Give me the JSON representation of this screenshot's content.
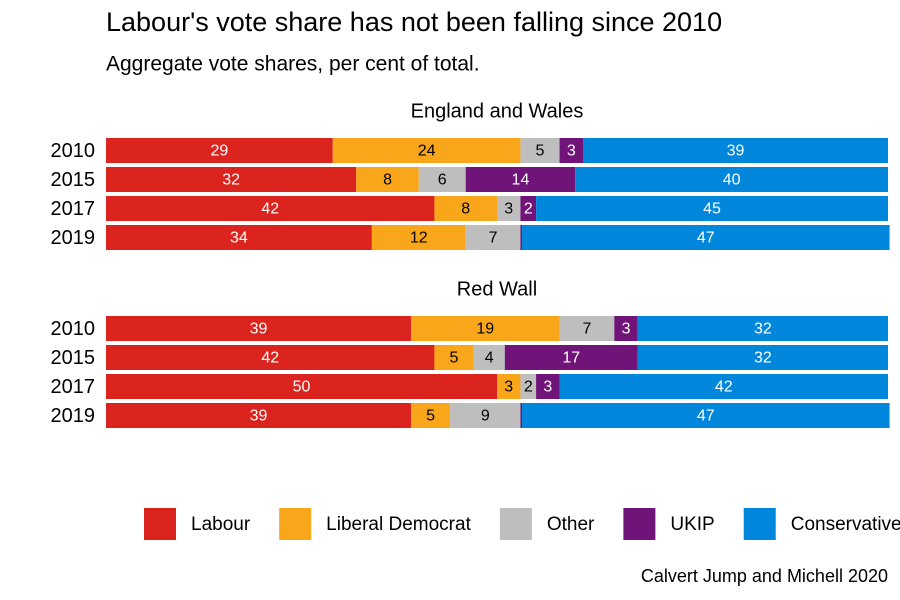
{
  "title": "Labour's vote share has not been falling since 2010",
  "subtitle": "Aggregate vote shares, per cent of total.",
  "source": "Calvert Jump and Michell 2020",
  "legend": "bottom",
  "chart_data": [
    {
      "type": "bar",
      "orientation": "horizontal",
      "stacked": true,
      "title": "England and Wales",
      "categories": [
        "2010",
        "2015",
        "2017",
        "2019"
      ],
      "xlim": [
        0,
        100
      ],
      "series": [
        {
          "name": "Labour",
          "color": "#dc241f",
          "label_color": "#ffffff",
          "values": [
            29,
            32,
            42,
            34
          ]
        },
        {
          "name": "Liberal Democrat",
          "color": "#faa61a",
          "label_color": "#000000",
          "values": [
            24,
            8,
            8,
            12
          ]
        },
        {
          "name": "Other",
          "color": "#bebebe",
          "label_color": "#000000",
          "values": [
            5,
            6,
            3,
            7
          ]
        },
        {
          "name": "UKIP",
          "color": "#70147a",
          "label_color": "#ffffff",
          "values": [
            3,
            14,
            2,
            0.2
          ],
          "value_labels": [
            "3",
            "14",
            "2",
            null
          ]
        },
        {
          "name": "Conservative",
          "color": "#0087dc",
          "label_color": "#ffffff",
          "values": [
            39,
            40,
            45,
            47
          ]
        }
      ]
    },
    {
      "type": "bar",
      "orientation": "horizontal",
      "stacked": true,
      "title": "Red Wall",
      "categories": [
        "2010",
        "2015",
        "2017",
        "2019"
      ],
      "xlim": [
        0,
        100
      ],
      "series": [
        {
          "name": "Labour",
          "color": "#dc241f",
          "label_color": "#ffffff",
          "values": [
            39,
            42,
            50,
            39
          ]
        },
        {
          "name": "Liberal Democrat",
          "color": "#faa61a",
          "label_color": "#000000",
          "values": [
            19,
            5,
            3,
            5
          ]
        },
        {
          "name": "Other",
          "color": "#bebebe",
          "label_color": "#000000",
          "values": [
            7,
            4,
            2,
            9
          ]
        },
        {
          "name": "UKIP",
          "color": "#70147a",
          "label_color": "#ffffff",
          "values": [
            3,
            17,
            3,
            0.2
          ],
          "value_labels": [
            "3",
            "17",
            "3",
            null
          ]
        },
        {
          "name": "Conservative",
          "color": "#0087dc",
          "label_color": "#ffffff",
          "values": [
            32,
            32,
            42,
            47
          ]
        }
      ]
    }
  ]
}
